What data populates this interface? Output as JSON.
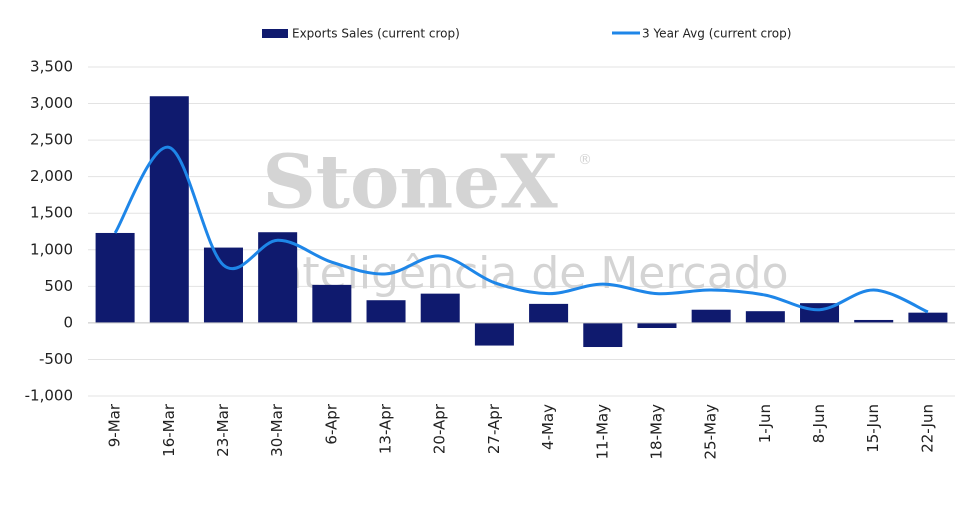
{
  "chart_data": {
    "type": "bar",
    "categories": [
      "9-Mar",
      "16-Mar",
      "23-Mar",
      "30-Mar",
      "6-Apr",
      "13-Apr",
      "20-Apr",
      "27-Apr",
      "4-May",
      "11-May",
      "18-May",
      "25-May",
      "1-Jun",
      "8-Jun",
      "15-Jun",
      "22-Jun"
    ],
    "series": [
      {
        "name": "Exports Sales (current crop)",
        "type": "bar",
        "color": "#0f1a6e",
        "values": [
          1230,
          3100,
          1030,
          1240,
          520,
          310,
          400,
          -310,
          260,
          -330,
          -70,
          180,
          160,
          270,
          40,
          140
        ]
      },
      {
        "name": "3 Year Avg (current crop)",
        "type": "line",
        "color": "#1e86e8",
        "values": [
          1230,
          2400,
          790,
          1130,
          830,
          670,
          915,
          550,
          400,
          530,
          400,
          450,
          380,
          180,
          450,
          150
        ]
      }
    ],
    "ylim": [
      -1000,
      3500
    ],
    "yticks": [
      {
        "value": -1000,
        "label": "-1,000"
      },
      -500,
      0,
      500,
      {
        "value": 1000,
        "label": "1,000"
      },
      {
        "value": 1500,
        "label": "1,500"
      },
      {
        "value": 2000,
        "label": "2,000"
      },
      {
        "value": 2500,
        "label": "2,500"
      },
      {
        "value": 3000,
        "label": "3,000"
      },
      {
        "value": 3500,
        "label": "3,500"
      }
    ],
    "grid": true,
    "legend": "top",
    "watermark": {
      "brand": "StoneX",
      "mark": "®",
      "tagline": "Inteligência de Mercado"
    }
  }
}
